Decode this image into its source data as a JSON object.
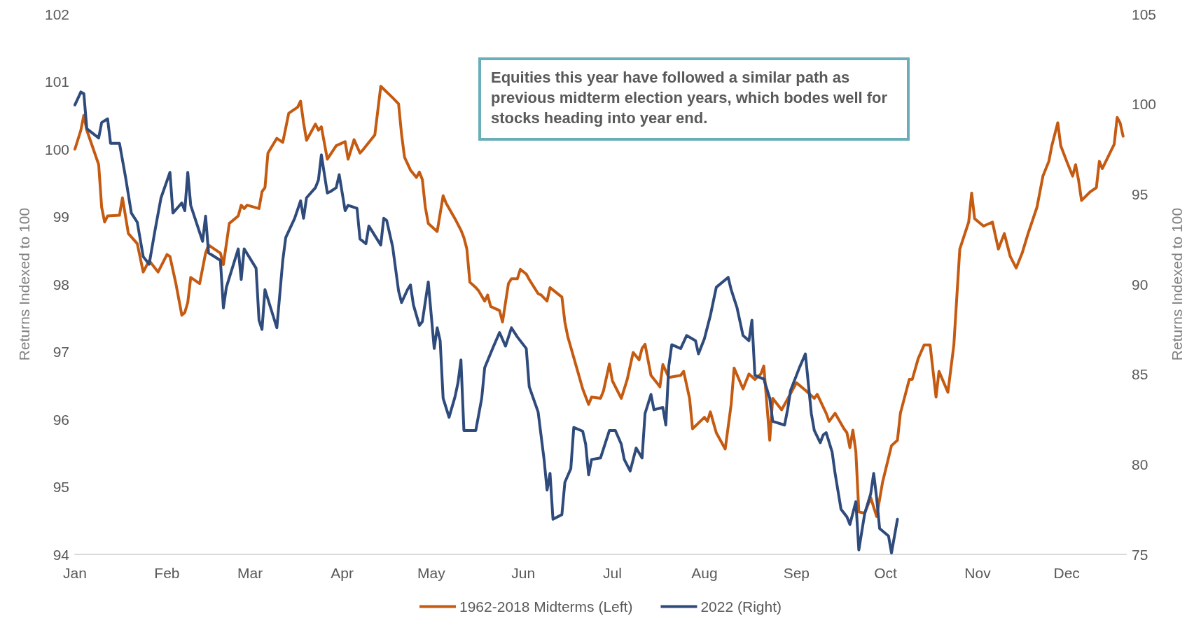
{
  "chart_data": {
    "type": "line",
    "ylabel": "Returns Indexed to 100",
    "y2label": "Returns Indexed to 100",
    "annotations": [
      "Equities this year have followed a similar path as previous midterm election years, which bodes well for stocks heading into year end."
    ],
    "xlim": [
      "--01-01",
      "--12-21"
    ],
    "xticks": [
      {
        "value": "--01-01",
        "label": "Jan"
      },
      {
        "value": "--02-01",
        "label": "Feb"
      },
      {
        "value": "--03-01",
        "label": "Mar"
      },
      {
        "value": "--04-01",
        "label": "Apr"
      },
      {
        "value": "--05-01",
        "label": "May"
      },
      {
        "value": "--06-01",
        "label": "Jun"
      },
      {
        "value": "--07-01",
        "label": "Jul"
      },
      {
        "value": "--08-01",
        "label": "Aug"
      },
      {
        "value": "--09-01",
        "label": "Sep"
      },
      {
        "value": "--10-01",
        "label": "Oct"
      },
      {
        "value": "--11-01",
        "label": "Nov"
      },
      {
        "value": "--12-01",
        "label": "Dec"
      }
    ],
    "ylim": [
      94,
      102
    ],
    "yticks": [
      94,
      95,
      96,
      97,
      98,
      99,
      100,
      101,
      102
    ],
    "y2lim": [
      75,
      105
    ],
    "y2ticks": [
      75,
      80,
      85,
      90,
      95,
      100,
      105
    ],
    "grid": false,
    "legend": "bottom",
    "marker": "none",
    "line_style": "solid",
    "series": [
      {
        "name": "1962-2018 Midterms (Left)",
        "color": "#c55a11",
        "axis": "y",
        "x": [
          "--01-01",
          "--01-03",
          "--01-04",
          "--01-05",
          "--01-09",
          "--01-10",
          "--01-11",
          "--01-12",
          "--01-16",
          "--01-17",
          "--01-19",
          "--01-22",
          "--01-24",
          "--01-26",
          "--01-29",
          "--02-01",
          "--02-02",
          "--02-04",
          "--02-06",
          "--02-07",
          "--02-08",
          "--02-09",
          "--02-12",
          "--02-14",
          "--02-15",
          "--02-19",
          "--02-20",
          "--02-22",
          "--02-25",
          "--02-26",
          "--02-27",
          "--02-28",
          "--03-04",
          "--03-05",
          "--03-06",
          "--03-07",
          "--03-10",
          "--03-12",
          "--03-14",
          "--03-15",
          "--03-17",
          "--03-18",
          "--03-19",
          "--03-20",
          "--03-23",
          "--03-24",
          "--03-25",
          "--03-27",
          "--03-30",
          "--04-02",
          "--04-03",
          "--04-04",
          "--04-05",
          "--04-07",
          "--04-08",
          "--04-12",
          "--04-14",
          "--04-18",
          "--04-20",
          "--04-21",
          "--04-22",
          "--04-24",
          "--04-26",
          "--04-27",
          "--04-28",
          "--04-29",
          "--04-30",
          "--05-03",
          "--05-05",
          "--05-06",
          "--05-09",
          "--05-11",
          "--05-12",
          "--05-13",
          "--05-14",
          "--05-16",
          "--05-17",
          "--05-19",
          "--05-20",
          "--05-21",
          "--05-24",
          "--05-25",
          "--05-27",
          "--05-28",
          "--05-30",
          "--05-31",
          "--06-02",
          "--06-03",
          "--06-06",
          "--06-07",
          "--06-09",
          "--06-10",
          "--06-14",
          "--06-15",
          "--06-16",
          "--06-19",
          "--06-21",
          "--06-23",
          "--06-24",
          "--06-27",
          "--06-28",
          "--06-30",
          "--07-01",
          "--07-04",
          "--07-06",
          "--07-08",
          "--07-10",
          "--07-11",
          "--07-12",
          "--07-14",
          "--07-16",
          "--07-17",
          "--07-18",
          "--07-20",
          "--07-24",
          "--07-25",
          "--07-27",
          "--07-28",
          "--08-01",
          "--08-02",
          "--08-03",
          "--08-05",
          "--08-08",
          "--08-10",
          "--08-11",
          "--08-14",
          "--08-16",
          "--08-18",
          "--08-20",
          "--08-21",
          "--08-23",
          "--08-24",
          "--08-27",
          "--09-01",
          "--09-04",
          "--09-07",
          "--09-08",
          "--09-11",
          "--09-12",
          "--09-14",
          "--09-17",
          "--09-18",
          "--09-19",
          "--09-20",
          "--09-21",
          "--09-22",
          "--09-24",
          "--09-26",
          "--09-28",
          "--09-30",
          "--10-03",
          "--10-05",
          "--10-06",
          "--10-09",
          "--10-10",
          "--10-12",
          "--10-14",
          "--10-16",
          "--10-18",
          "--10-19",
          "--10-22",
          "--10-24",
          "--10-26",
          "--10-29",
          "--10-30",
          "--10-31",
          "--11-03",
          "--11-06",
          "--11-08",
          "--11-10",
          "--11-12",
          "--11-14",
          "--11-16",
          "--11-18",
          "--11-21",
          "--11-23",
          "--11-25",
          "--11-26",
          "--11-28",
          "--11-29",
          "--12-01",
          "--12-03",
          "--12-04",
          "--12-05",
          "--12-06",
          "--12-09",
          "--12-11",
          "--12-12",
          "--12-13",
          "--12-17",
          "--12-18",
          "--12-19",
          "--12-20"
        ],
        "values": [
          100.0,
          100.28,
          100.5,
          100.28,
          99.77,
          99.14,
          98.92,
          99.01,
          99.02,
          99.28,
          98.75,
          98.6,
          98.18,
          98.35,
          98.18,
          98.44,
          98.41,
          98.01,
          97.54,
          97.58,
          97.73,
          98.1,
          98.01,
          98.46,
          98.58,
          98.46,
          98.29,
          98.9,
          99.01,
          99.17,
          99.12,
          99.17,
          99.12,
          99.37,
          99.43,
          99.94,
          100.16,
          100.1,
          100.53,
          100.56,
          100.62,
          100.71,
          100.39,
          100.13,
          100.37,
          100.28,
          100.33,
          99.85,
          100.05,
          100.11,
          99.85,
          99.99,
          100.14,
          99.94,
          99.99,
          100.21,
          100.93,
          100.76,
          100.67,
          100.22,
          99.88,
          99.69,
          99.58,
          99.66,
          99.55,
          99.14,
          98.9,
          98.78,
          99.31,
          99.2,
          98.97,
          98.8,
          98.69,
          98.52,
          98.03,
          97.95,
          97.9,
          97.75,
          97.84,
          97.67,
          97.61,
          97.44,
          98.01,
          98.08,
          98.08,
          98.22,
          98.15,
          98.07,
          97.86,
          97.84,
          97.75,
          97.95,
          97.81,
          97.44,
          97.22,
          96.76,
          96.45,
          96.22,
          96.33,
          96.31,
          96.42,
          96.82,
          96.57,
          96.31,
          96.59,
          96.99,
          96.88,
          97.05,
          97.11,
          96.65,
          96.54,
          96.48,
          96.81,
          96.62,
          96.65,
          96.71,
          96.31,
          95.86,
          96.03,
          95.97,
          96.11,
          95.8,
          95.56,
          96.22,
          96.76,
          96.45,
          96.67,
          96.59,
          96.67,
          96.79,
          95.69,
          96.31,
          96.14,
          96.54,
          96.43,
          96.31,
          96.37,
          96.09,
          95.97,
          96.09,
          95.86,
          95.8,
          95.58,
          95.84,
          95.52,
          94.63,
          94.61,
          94.84,
          94.56,
          95.07,
          95.61,
          95.69,
          96.09,
          96.59,
          96.59,
          96.9,
          97.1,
          97.1,
          96.33,
          96.71,
          96.4,
          97.1,
          98.52,
          98.92,
          99.35,
          98.97,
          98.86,
          98.92,
          98.52,
          98.75,
          98.41,
          98.24,
          98.46,
          98.75,
          99.14,
          99.6,
          99.82,
          100.05,
          100.39,
          100.05,
          99.82,
          99.6,
          99.77,
          99.54,
          99.24,
          99.37,
          99.43,
          99.82,
          99.71,
          100.07,
          100.47,
          100.39,
          100.19
        ]
      },
      {
        "name": "2022 (Right)",
        "color": "#2f4b7c",
        "axis": "y2",
        "x": [
          "--01-01",
          "--01-03",
          "--01-04",
          "--01-05",
          "--01-09",
          "--01-10",
          "--01-12",
          "--01-13",
          "--01-16",
          "--01-18",
          "--01-20",
          "--01-22",
          "--01-24",
          "--01-26",
          "--01-28",
          "--01-30",
          "--02-02",
          "--02-03",
          "--02-06",
          "--02-07",
          "--02-08",
          "--02-09",
          "--02-13",
          "--02-14",
          "--02-15",
          "--02-19",
          "--02-20",
          "--02-21",
          "--02-25",
          "--02-26",
          "--02-27",
          "--03-03",
          "--03-04",
          "--03-05",
          "--03-06",
          "--03-10",
          "--03-12",
          "--03-13",
          "--03-16",
          "--03-18",
          "--03-19",
          "--03-20",
          "--03-23",
          "--03-24",
          "--03-25",
          "--03-27",
          "--03-28",
          "--03-30",
          "--03-31",
          "--04-02",
          "--04-03",
          "--04-06",
          "--04-07",
          "--04-09",
          "--04-10",
          "--04-14",
          "--04-15",
          "--04-16",
          "--04-18",
          "--04-20",
          "--04-21",
          "--04-23",
          "--04-24",
          "--04-25",
          "--04-27",
          "--04-28",
          "--04-30",
          "--05-02",
          "--05-03",
          "--05-04",
          "--05-05",
          "--05-07",
          "--05-09",
          "--05-10",
          "--05-11",
          "--05-12",
          "--05-16",
          "--05-18",
          "--05-19",
          "--05-22",
          "--05-24",
          "--05-26",
          "--05-28",
          "--05-30",
          "--06-02",
          "--06-03",
          "--06-06",
          "--06-08",
          "--06-09",
          "--06-10",
          "--06-11",
          "--06-14",
          "--06-15",
          "--06-17",
          "--06-18",
          "--06-21",
          "--06-22",
          "--06-23",
          "--06-24",
          "--06-27",
          "--06-30",
          "--07-02",
          "--07-04",
          "--07-05",
          "--07-07",
          "--07-08",
          "--07-09",
          "--07-11",
          "--07-12",
          "--07-14",
          "--07-15",
          "--07-18",
          "--07-19",
          "--07-20",
          "--07-21",
          "--07-24",
          "--07-26",
          "--07-29",
          "--07-30",
          "--08-01",
          "--08-03",
          "--08-05",
          "--08-09",
          "--08-10",
          "--08-12",
          "--08-14",
          "--08-16",
          "--08-17",
          "--08-18",
          "--08-21",
          "--08-23",
          "--08-24",
          "--08-28",
          "--08-29",
          "--08-30",
          "--09-02",
          "--09-04",
          "--09-06",
          "--09-07",
          "--09-09",
          "--09-10",
          "--09-11",
          "--09-13",
          "--09-14",
          "--09-16",
          "--09-18",
          "--09-19",
          "--09-21",
          "--09-22",
          "--09-24",
          "--09-26",
          "--09-27",
          "--09-28",
          "--09-29",
          "--10-02",
          "--10-03",
          "--10-05"
        ],
        "values": [
          99.95,
          100.67,
          100.58,
          98.63,
          98.12,
          98.97,
          99.18,
          97.82,
          97.82,
          95.99,
          93.95,
          93.44,
          91.53,
          91.11,
          93.02,
          94.8,
          96.21,
          93.95,
          94.51,
          94.08,
          96.21,
          94.38,
          92.38,
          93.78,
          91.74,
          91.32,
          88.68,
          89.83,
          91.96,
          90.26,
          91.96,
          90.89,
          88.0,
          87.49,
          89.7,
          87.58,
          91.32,
          92.59,
          93.66,
          94.63,
          93.66,
          94.8,
          95.36,
          95.78,
          97.18,
          95.06,
          95.14,
          95.36,
          96.08,
          94.08,
          94.38,
          94.21,
          92.51,
          92.25,
          93.23,
          92.17,
          93.66,
          93.53,
          92.08,
          89.62,
          88.98,
          89.7,
          89.96,
          88.85,
          87.71,
          87.92,
          90.13,
          86.43,
          87.58,
          86.86,
          83.67,
          82.61,
          83.75,
          84.52,
          85.79,
          81.88,
          81.88,
          83.67,
          85.37,
          86.56,
          87.32,
          86.56,
          87.58,
          87.07,
          86.43,
          84.31,
          82.9,
          80.27,
          78.57,
          79.5,
          76.95,
          77.21,
          79.0,
          79.76,
          82.05,
          81.84,
          81.12,
          79.42,
          80.27,
          80.35,
          81.88,
          81.88,
          81.12,
          80.27,
          79.63,
          80.27,
          80.91,
          80.35,
          82.82,
          83.88,
          83.03,
          83.16,
          82.18,
          85.45,
          86.64,
          86.43,
          87.15,
          86.86,
          86.13,
          86.98,
          88.26,
          89.83,
          90.38,
          89.7,
          88.68,
          87.15,
          86.86,
          88.0,
          84.94,
          84.73,
          83.67,
          82.39,
          82.18,
          83.03,
          84.09,
          85.37,
          86.13,
          82.82,
          81.88,
          81.2,
          81.63,
          81.76,
          80.69,
          79.5,
          77.51,
          77.08,
          76.66,
          77.93,
          75.25,
          77.29,
          78.36,
          79.5,
          78.14,
          76.44,
          76.02,
          75.08,
          76.95
        ]
      }
    ]
  }
}
